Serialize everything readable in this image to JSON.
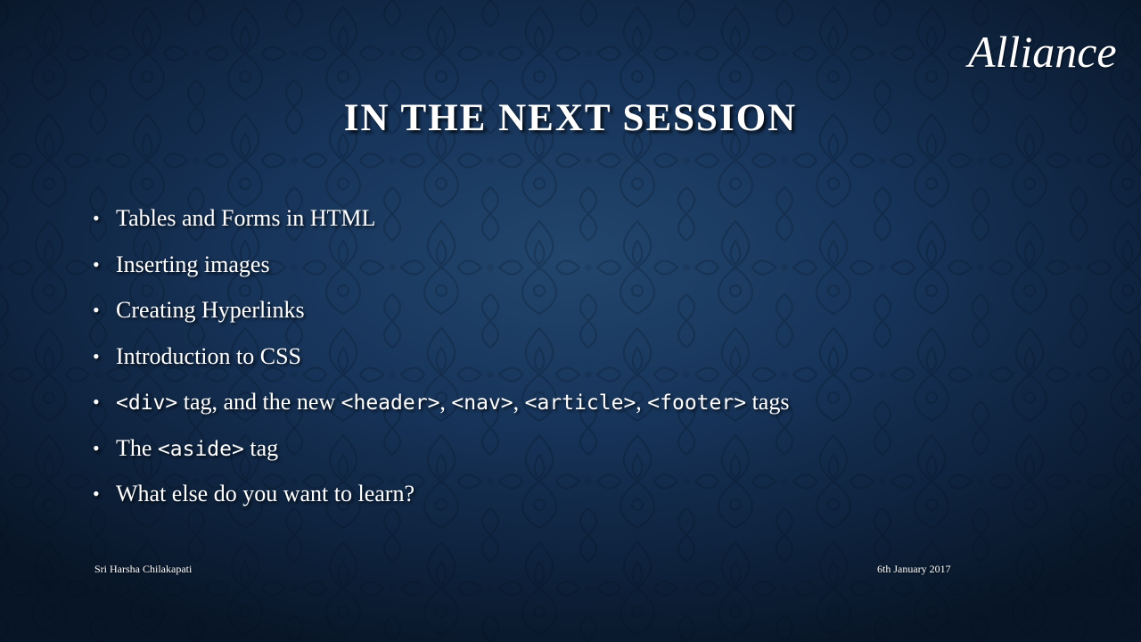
{
  "slide": {
    "logo_text": "Alliance",
    "title": "IN THE NEXT SESSION",
    "bullets": [
      {
        "segments": [
          {
            "text": "Tables and Forms in HTML",
            "code": false
          }
        ]
      },
      {
        "segments": [
          {
            "text": "Inserting images",
            "code": false
          }
        ]
      },
      {
        "segments": [
          {
            "text": "Creating Hyperlinks",
            "code": false
          }
        ]
      },
      {
        "segments": [
          {
            "text": "Introduction to CSS",
            "code": false
          }
        ]
      },
      {
        "segments": [
          {
            "text": "<div>",
            "code": true
          },
          {
            "text": " tag, and the new ",
            "code": false
          },
          {
            "text": "<header>",
            "code": true
          },
          {
            "text": ", ",
            "code": false
          },
          {
            "text": "<nav>",
            "code": true
          },
          {
            "text": ", ",
            "code": false
          },
          {
            "text": "<article>",
            "code": true
          },
          {
            "text": ", ",
            "code": false
          },
          {
            "text": "<footer>",
            "code": true
          },
          {
            "text": " tags",
            "code": false
          }
        ]
      },
      {
        "segments": [
          {
            "text": "The ",
            "code": false
          },
          {
            "text": "<aside>",
            "code": true
          },
          {
            "text": " tag",
            "code": false
          }
        ]
      },
      {
        "segments": [
          {
            "text": "What else do you want to learn?",
            "code": false
          }
        ]
      }
    ],
    "bullet_symbol": "•",
    "footer_left": "Sri Harsha Chilakapati",
    "footer_right": "6th January 2017"
  },
  "colors": {
    "background_center": "#22466d",
    "background_edge": "#081526",
    "text": "#ffffff"
  }
}
